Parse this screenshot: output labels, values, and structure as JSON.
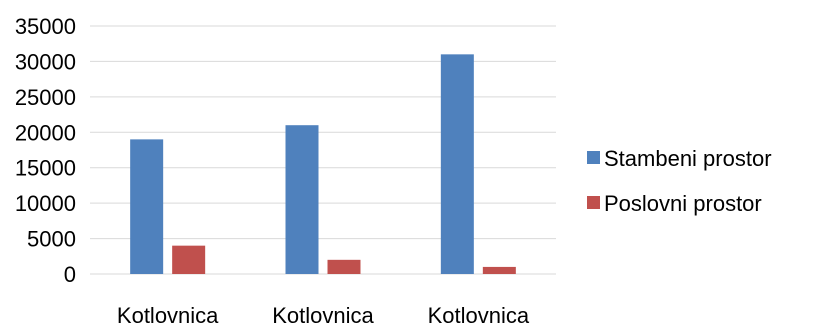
{
  "chart_data": {
    "type": "bar",
    "title": "",
    "xlabel": "",
    "ylabel": "",
    "categories": [
      "Kotlovnica",
      "Kotlovnica",
      "Kotlovnica"
    ],
    "series": [
      {
        "name": "Stambeni prostor",
        "color": "#4f81bd",
        "values": [
          19000,
          21000,
          31000
        ]
      },
      {
        "name": "Poslovni prostor",
        "color": "#c0504d",
        "values": [
          4000,
          2000,
          1000
        ]
      }
    ],
    "ylim": [
      0,
      35000
    ],
    "yticks": [
      "35000",
      "30000",
      "25000",
      "20000",
      "15000",
      "10000",
      "5000",
      "0"
    ],
    "grid": true,
    "legend_position": "right"
  }
}
